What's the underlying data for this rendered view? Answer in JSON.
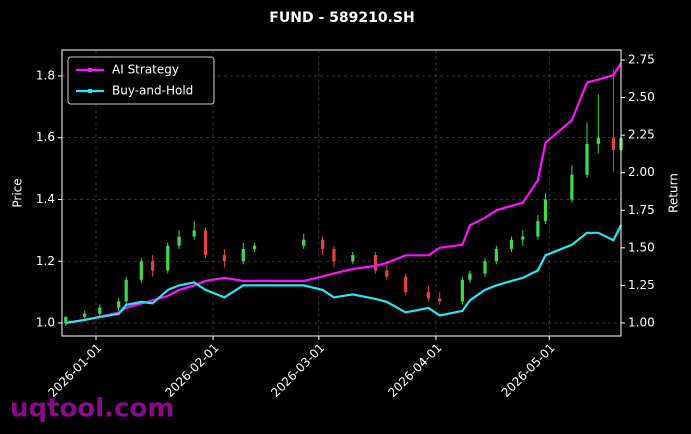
{
  "chart_data": {
    "type": "candlestick",
    "title": "FUND - 589210.SH",
    "ylabel": "Price",
    "y2label": "Return",
    "watermark": "uqtool.com",
    "x": [
      "2025-12-24",
      "2025-12-29",
      "2026-01-02",
      "2026-01-07",
      "2026-01-09",
      "2026-01-13",
      "2026-01-16",
      "2026-01-20",
      "2026-01-23",
      "2026-01-27",
      "2026-01-30",
      "2026-02-04",
      "2026-02-09",
      "2026-02-12",
      "2026-02-25",
      "2026-03-02",
      "2026-03-05",
      "2026-03-10",
      "2026-03-16",
      "2026-03-19",
      "2026-03-24",
      "2026-03-30",
      "2026-04-02",
      "2026-04-08",
      "2026-04-10",
      "2026-04-14",
      "2026-04-17",
      "2026-04-21",
      "2026-04-24",
      "2026-04-28",
      "2026-04-30",
      "2026-05-07",
      "2026-05-11",
      "2026-05-14",
      "2026-05-18",
      "2026-05-20"
    ],
    "ohlc": {
      "open": [
        1.0,
        1.02,
        1.03,
        1.05,
        1.07,
        1.14,
        1.2,
        1.17,
        1.25,
        1.28,
        1.3,
        1.22,
        1.2,
        1.24,
        1.25,
        1.27,
        1.24,
        1.2,
        1.22,
        1.17,
        1.15,
        1.1,
        1.08,
        1.07,
        1.14,
        1.16,
        1.2,
        1.24,
        1.27,
        1.28,
        1.33,
        1.4,
        1.48,
        1.58,
        1.6,
        1.56
      ],
      "high": [
        1.02,
        1.04,
        1.06,
        1.08,
        1.15,
        1.21,
        1.22,
        1.26,
        1.3,
        1.33,
        1.31,
        1.24,
        1.26,
        1.26,
        1.29,
        1.28,
        1.25,
        1.23,
        1.23,
        1.19,
        1.16,
        1.12,
        1.1,
        1.15,
        1.17,
        1.21,
        1.25,
        1.28,
        1.3,
        1.35,
        1.42,
        1.51,
        1.65,
        1.74,
        1.82,
        1.64
      ],
      "low": [
        0.99,
        1.01,
        1.02,
        1.04,
        1.06,
        1.13,
        1.15,
        1.16,
        1.24,
        1.27,
        1.21,
        1.18,
        1.19,
        1.23,
        1.24,
        1.22,
        1.18,
        1.19,
        1.16,
        1.14,
        1.09,
        1.07,
        1.06,
        1.06,
        1.13,
        1.15,
        1.19,
        1.23,
        1.25,
        1.27,
        1.32,
        1.39,
        1.47,
        1.55,
        1.49,
        1.52
      ],
      "close": [
        1.02,
        1.03,
        1.05,
        1.07,
        1.14,
        1.2,
        1.17,
        1.25,
        1.28,
        1.3,
        1.22,
        1.2,
        1.24,
        1.25,
        1.27,
        1.24,
        1.2,
        1.22,
        1.17,
        1.15,
        1.1,
        1.08,
        1.07,
        1.14,
        1.16,
        1.2,
        1.24,
        1.27,
        1.28,
        1.33,
        1.4,
        1.48,
        1.58,
        1.6,
        1.56,
        1.6
      ]
    },
    "up_color": "#3ddc4a",
    "down_color": "#e5433b",
    "series": [
      {
        "name": "AI Strategy",
        "color": "#ff10ff",
        "axis": "y2",
        "values": [
          1.0,
          1.02,
          1.04,
          1.07,
          1.1,
          1.13,
          1.15,
          1.18,
          1.22,
          1.25,
          1.28,
          1.3,
          1.28,
          1.28,
          1.28,
          1.31,
          1.33,
          1.36,
          1.38,
          1.4,
          1.45,
          1.45,
          1.5,
          1.52,
          1.65,
          1.7,
          1.75,
          1.78,
          1.8,
          1.95,
          2.2,
          2.35,
          2.6,
          2.62,
          2.65,
          2.73
        ]
      },
      {
        "name": "Buy-and-Hold",
        "color": "#22e8f8",
        "axis": "y2",
        "values": [
          1.0,
          1.02,
          1.04,
          1.06,
          1.12,
          1.14,
          1.13,
          1.22,
          1.25,
          1.27,
          1.22,
          1.17,
          1.25,
          1.25,
          1.25,
          1.22,
          1.17,
          1.19,
          1.16,
          1.14,
          1.07,
          1.1,
          1.05,
          1.08,
          1.15,
          1.22,
          1.25,
          1.28,
          1.3,
          1.35,
          1.45,
          1.52,
          1.6,
          1.6,
          1.55,
          1.65
        ]
      }
    ],
    "xlim": [
      "2025-12-23",
      "2026-05-20"
    ],
    "xticks": [
      "2026-01-01",
      "2026-02-01",
      "2026-03-01",
      "2026-04-01",
      "2026-05-01"
    ],
    "ylim": [
      0.958,
      1.884
    ],
    "yticks": [
      {
        "value": 1,
        "label": "1.0"
      },
      1.2,
      1.4,
      1.6,
      1.8
    ],
    "y2lim": [
      0.913,
      2.817
    ],
    "y2ticks": [
      {
        "value": 1,
        "label": "1.00"
      },
      1.25,
      {
        "value": 1.5,
        "label": "1.50"
      },
      1.75,
      {
        "value": 2,
        "label": "2.00"
      },
      2.25,
      {
        "value": 2.5,
        "label": "2.50"
      },
      2.75
    ],
    "grid": true,
    "legend": "upper left"
  }
}
